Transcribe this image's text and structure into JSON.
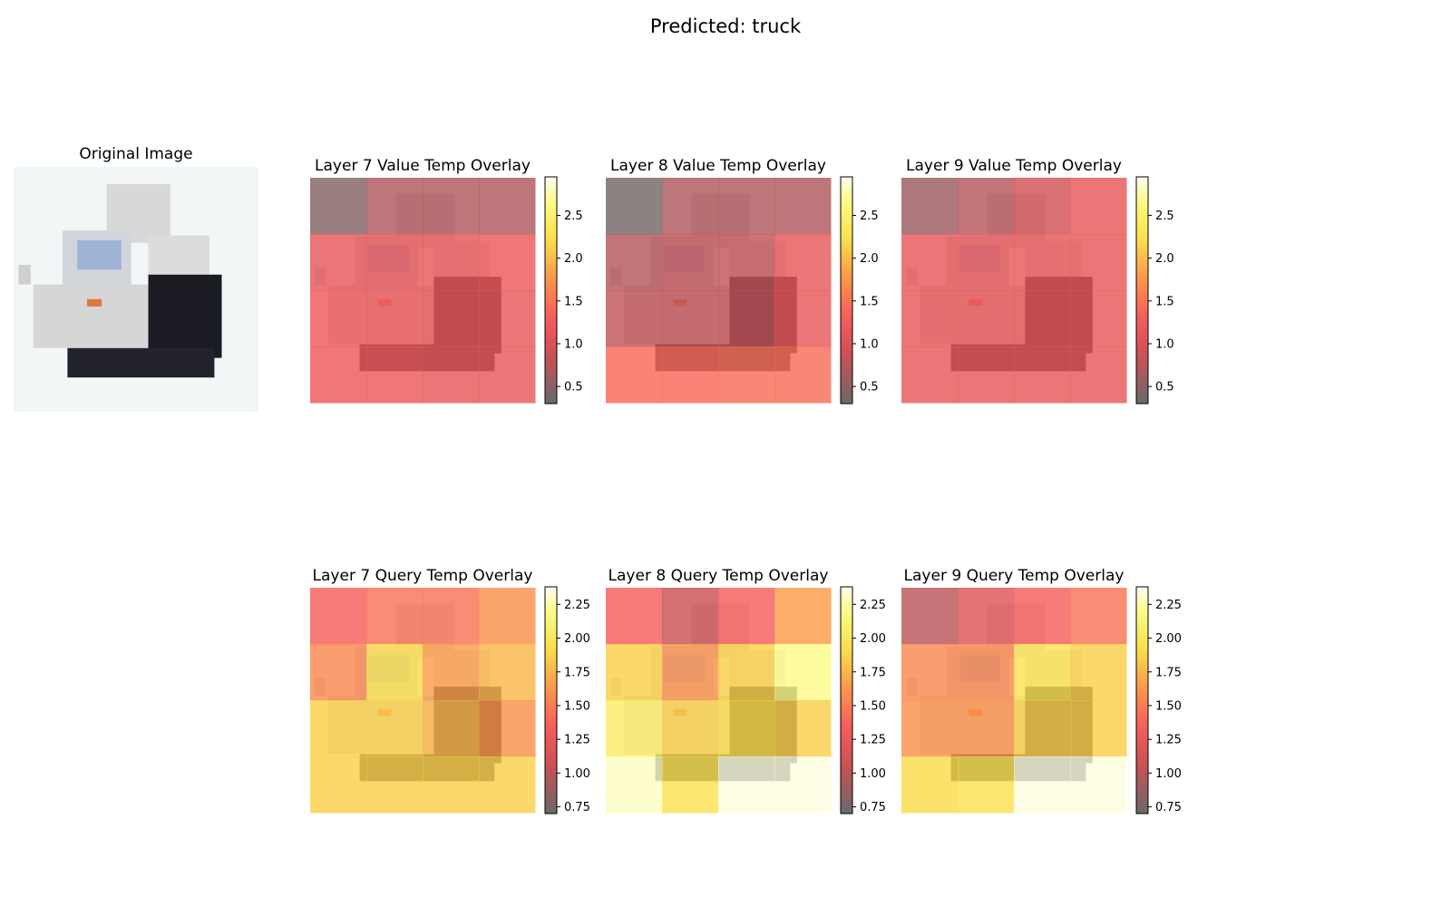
{
  "figure": {
    "suptitle": "Predicted: truck"
  },
  "original_image": {
    "title": "Original Image",
    "subject": "truck"
  },
  "chart_data": [
    {
      "type": "heatmap",
      "title": "Layer 7 Value Temp Overlay",
      "colormap": "hot",
      "colorbar": {
        "vmin": 0.3,
        "vmax": 2.95,
        "ticks": [
          0.5,
          1.0,
          1.5,
          2.0,
          2.5
        ],
        "tick_labels": [
          "0.5",
          "1.0",
          "1.5",
          "2.0",
          "2.5"
        ]
      },
      "values": [
        [
          0.45,
          0.7,
          0.7,
          0.7
        ],
        [
          1.15,
          1.15,
          1.15,
          1.2
        ],
        [
          1.2,
          1.2,
          1.15,
          1.15
        ],
        [
          1.2,
          1.2,
          1.15,
          1.15
        ]
      ]
    },
    {
      "type": "heatmap",
      "title": "Layer 8 Value Temp Overlay",
      "colormap": "hot",
      "colorbar": {
        "vmin": 0.3,
        "vmax": 2.95,
        "ticks": [
          0.5,
          1.0,
          1.5,
          2.0,
          2.5
        ],
        "tick_labels": [
          "0.5",
          "1.0",
          "1.5",
          "2.0",
          "2.5"
        ]
      },
      "values": [
        [
          0.35,
          0.7,
          0.7,
          0.7
        ],
        [
          0.75,
          0.8,
          0.8,
          1.15
        ],
        [
          0.8,
          0.8,
          0.8,
          1.15
        ],
        [
          1.4,
          1.4,
          1.45,
          1.45
        ]
      ]
    },
    {
      "type": "heatmap",
      "title": "Layer 9 Value Temp Overlay",
      "colormap": "hot",
      "colorbar": {
        "vmin": 0.3,
        "vmax": 2.95,
        "ticks": [
          0.5,
          1.0,
          1.5,
          2.0,
          2.5
        ],
        "tick_labels": [
          "0.5",
          "1.0",
          "1.5",
          "2.0",
          "2.5"
        ]
      },
      "values": [
        [
          0.6,
          0.75,
          0.9,
          1.15
        ],
        [
          1.15,
          1.15,
          1.15,
          1.15
        ],
        [
          1.15,
          1.15,
          1.15,
          1.15
        ],
        [
          1.15,
          1.15,
          1.15,
          1.15
        ]
      ]
    },
    {
      "type": "heatmap",
      "title": "Layer 7 Query Temp Overlay",
      "colormap": "hot",
      "colorbar": {
        "vmin": 0.7,
        "vmax": 2.38,
        "ticks": [
          0.75,
          1.0,
          1.25,
          1.5,
          1.75,
          2.0,
          2.25
        ],
        "tick_labels": [
          "0.75",
          "1.00",
          "1.25",
          "1.50",
          "1.75",
          "2.00",
          "2.25"
        ]
      },
      "values": [
        [
          1.35,
          1.45,
          1.45,
          1.6
        ],
        [
          1.55,
          1.9,
          1.65,
          1.75
        ],
        [
          1.85,
          1.85,
          1.75,
          1.6
        ],
        [
          1.85,
          1.85,
          1.85,
          1.85
        ]
      ]
    },
    {
      "type": "heatmap",
      "title": "Layer 8 Query Temp Overlay",
      "colormap": "hot",
      "colorbar": {
        "vmin": 0.7,
        "vmax": 2.38,
        "ticks": [
          0.75,
          1.0,
          1.25,
          1.5,
          1.75,
          2.0,
          2.25
        ],
        "tick_labels": [
          "0.75",
          "1.00",
          "1.25",
          "1.50",
          "1.75",
          "2.00",
          "2.25"
        ]
      },
      "values": [
        [
          1.35,
          1.05,
          1.35,
          1.65
        ],
        [
          1.85,
          1.6,
          1.85,
          2.2
        ],
        [
          2.05,
          1.85,
          1.9,
          1.85
        ],
        [
          2.3,
          1.95,
          2.35,
          2.35
        ]
      ]
    },
    {
      "type": "heatmap",
      "title": "Layer 9 Query Temp Overlay",
      "colormap": "hot",
      "colorbar": {
        "vmin": 0.7,
        "vmax": 2.38,
        "ticks": [
          0.75,
          1.0,
          1.25,
          1.5,
          1.75,
          2.0,
          2.25
        ],
        "tick_labels": [
          "0.75",
          "1.00",
          "1.25",
          "1.50",
          "1.75",
          "2.00",
          "2.25"
        ]
      },
      "values": [
        [
          1.0,
          1.2,
          1.35,
          1.45
        ],
        [
          1.55,
          1.55,
          1.95,
          1.85
        ],
        [
          1.6,
          1.6,
          1.85,
          1.85
        ],
        [
          1.9,
          1.95,
          2.35,
          2.35
        ]
      ]
    }
  ]
}
